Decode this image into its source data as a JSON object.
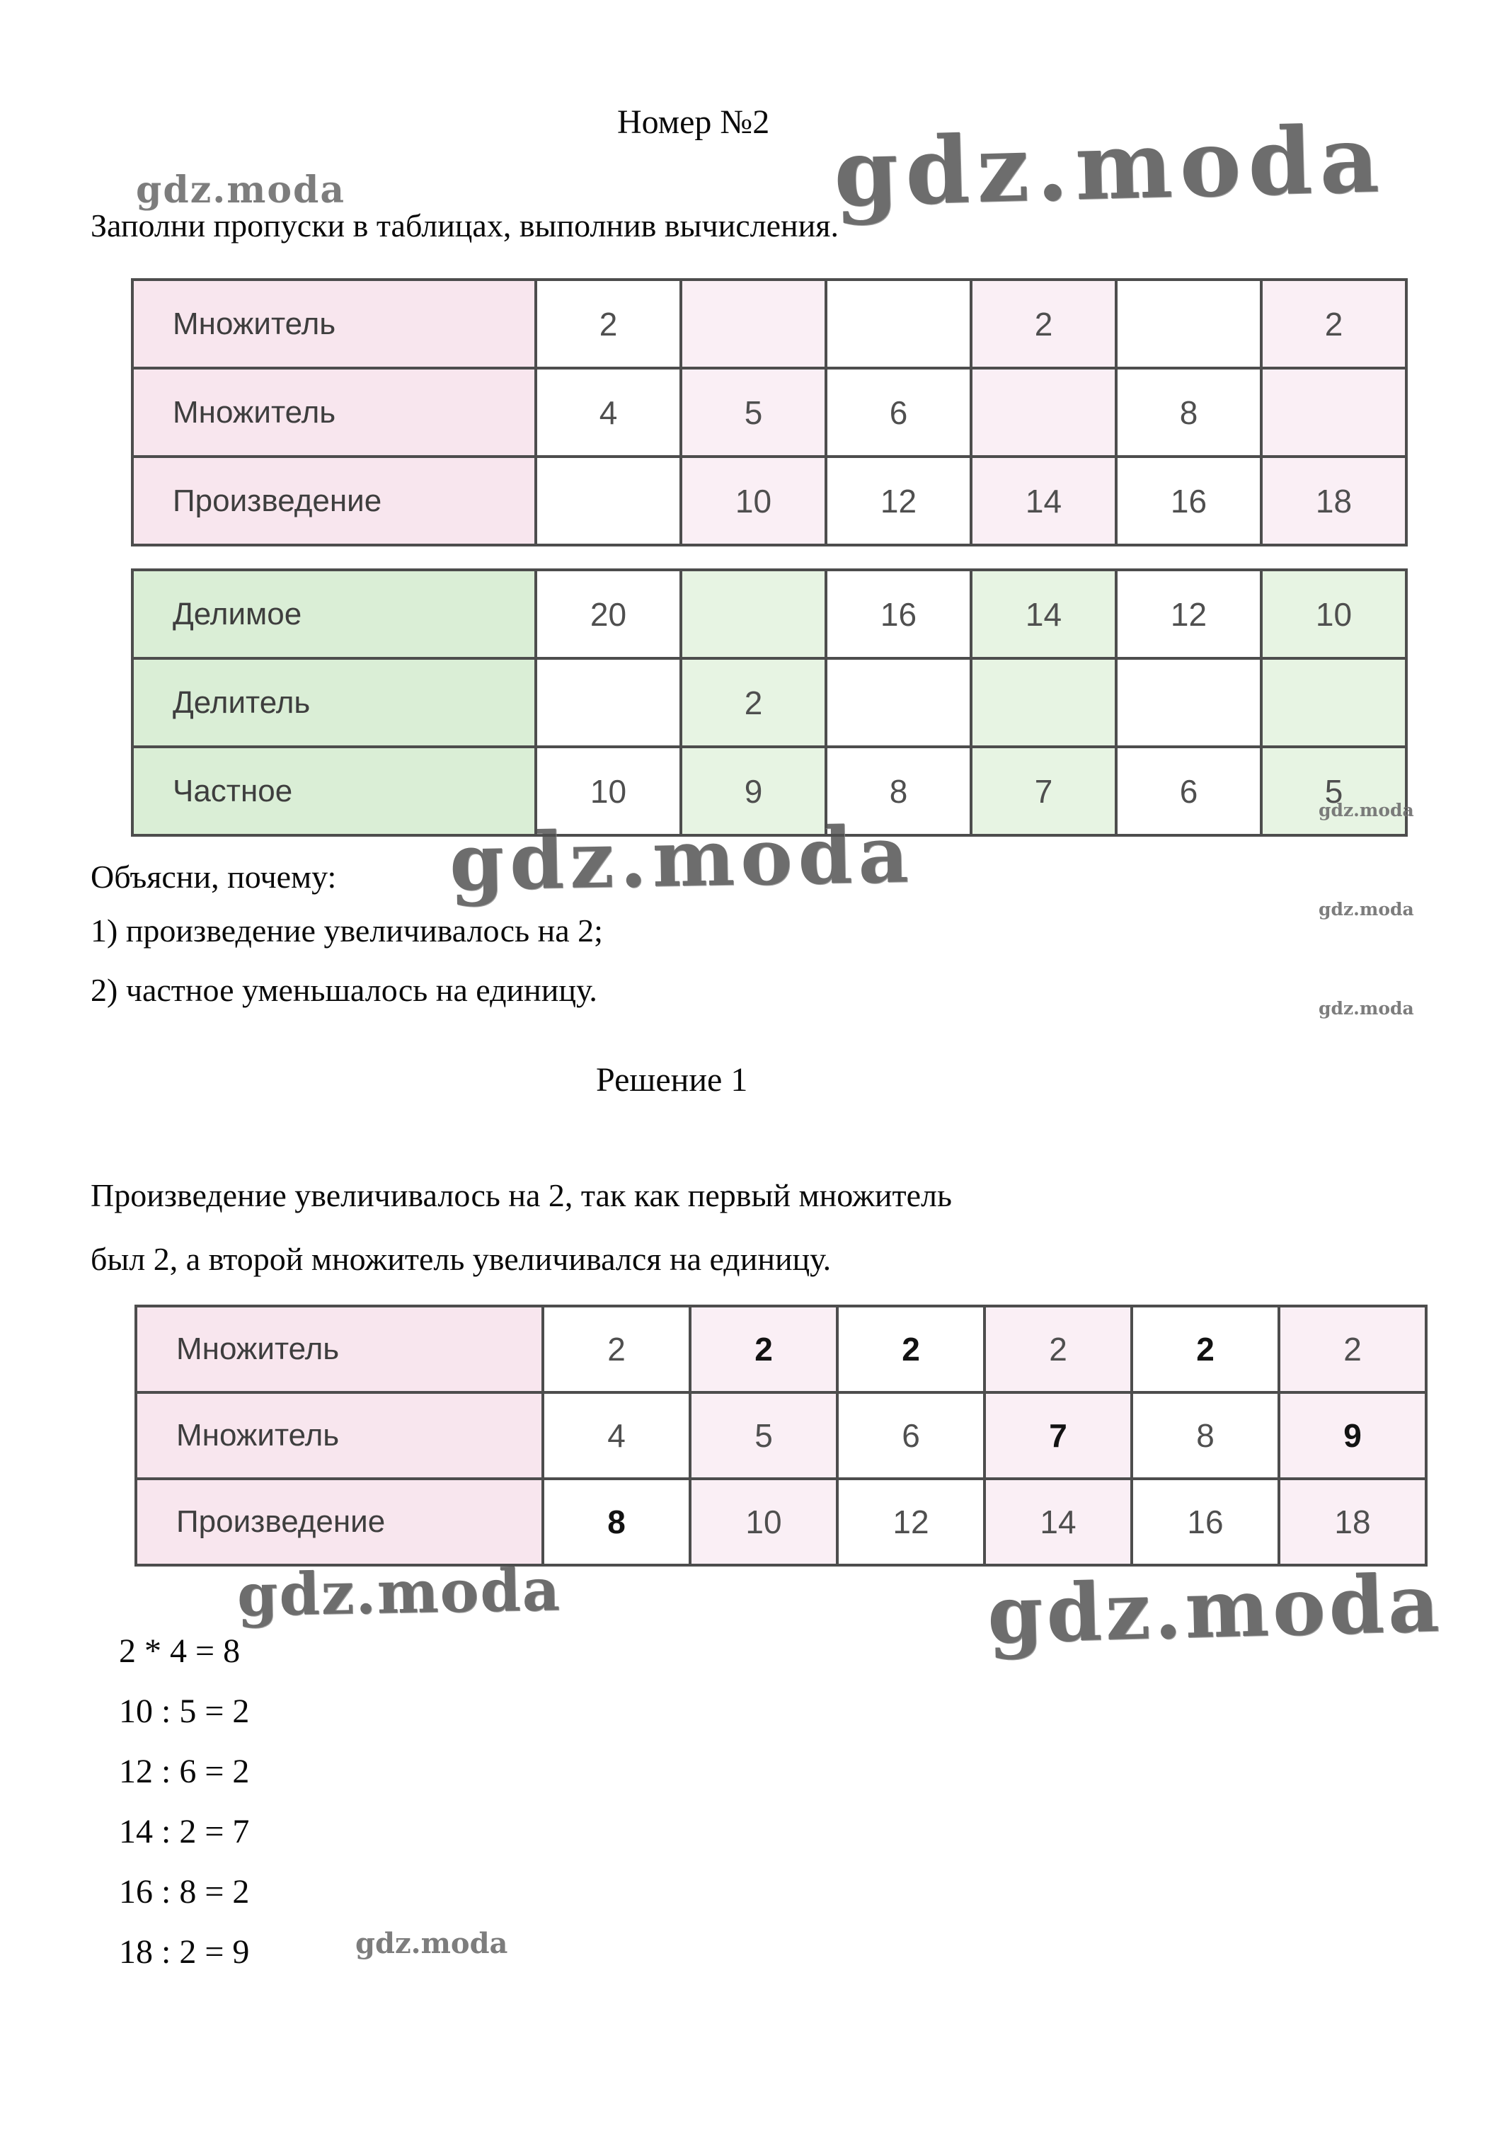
{
  "brand": "gdz.moda",
  "header": {
    "title": "Номер №2",
    "intro": "Заполни пропуски в таблицах, выполнив вычисления."
  },
  "tables": {
    "multiplication_problem": {
      "rows": [
        {
          "label": "Множитель",
          "cells": [
            {
              "v": "2"
            },
            {
              "v": ""
            },
            {
              "v": ""
            },
            {
              "v": "2"
            },
            {
              "v": ""
            },
            {
              "v": "2"
            }
          ]
        },
        {
          "label": "Множитель",
          "cells": [
            {
              "v": "4"
            },
            {
              "v": "5"
            },
            {
              "v": "6"
            },
            {
              "v": ""
            },
            {
              "v": "8"
            },
            {
              "v": ""
            }
          ]
        },
        {
          "label": "Произведение",
          "cells": [
            {
              "v": ""
            },
            {
              "v": "10"
            },
            {
              "v": "12"
            },
            {
              "v": "14"
            },
            {
              "v": "16"
            },
            {
              "v": "18"
            }
          ]
        }
      ]
    },
    "division_problem": {
      "rows": [
        {
          "label": "Делимое",
          "cells": [
            {
              "v": "20"
            },
            {
              "v": ""
            },
            {
              "v": "16"
            },
            {
              "v": "14"
            },
            {
              "v": "12"
            },
            {
              "v": "10"
            }
          ]
        },
        {
          "label": "Делитель",
          "cells": [
            {
              "v": ""
            },
            {
              "v": "2"
            },
            {
              "v": ""
            },
            {
              "v": ""
            },
            {
              "v": ""
            },
            {
              "v": ""
            }
          ]
        },
        {
          "label": "Частное",
          "cells": [
            {
              "v": "10"
            },
            {
              "v": "9"
            },
            {
              "v": "8"
            },
            {
              "v": "7"
            },
            {
              "v": "6"
            },
            {
              "v": "5"
            }
          ]
        }
      ]
    },
    "multiplication_solution": {
      "rows": [
        {
          "label": "Множитель",
          "cells": [
            {
              "v": "2"
            },
            {
              "v": "2",
              "b": true
            },
            {
              "v": "2",
              "b": true
            },
            {
              "v": "2"
            },
            {
              "v": "2",
              "b": true
            },
            {
              "v": "2"
            }
          ]
        },
        {
          "label": "Множитель",
          "cells": [
            {
              "v": "4"
            },
            {
              "v": "5"
            },
            {
              "v": "6"
            },
            {
              "v": "7",
              "b": true
            },
            {
              "v": "8"
            },
            {
              "v": "9",
              "b": true
            }
          ]
        },
        {
          "label": "Произведение",
          "cells": [
            {
              "v": "8",
              "b": true
            },
            {
              "v": "10"
            },
            {
              "v": "12"
            },
            {
              "v": "14"
            },
            {
              "v": "16"
            },
            {
              "v": "18"
            }
          ]
        }
      ]
    }
  },
  "explain": {
    "heading": "Объясни, почему:",
    "items": [
      "1) произведение увеличивалось на 2;",
      "2) частное уменьшалось на единицу."
    ]
  },
  "solution": {
    "heading": "Решение 1",
    "lines": [
      "Произведение увеличивалось на 2, так как первый множитель",
      "был 2, а второй множитель увеличивался на единицу."
    ]
  },
  "equations": [
    "2 * 4 = 8",
    "10 : 5 = 2",
    "12 : 6 = 2",
    "14 : 2 = 7",
    "16 : 8 = 2",
    "18 : 2 = 9"
  ]
}
